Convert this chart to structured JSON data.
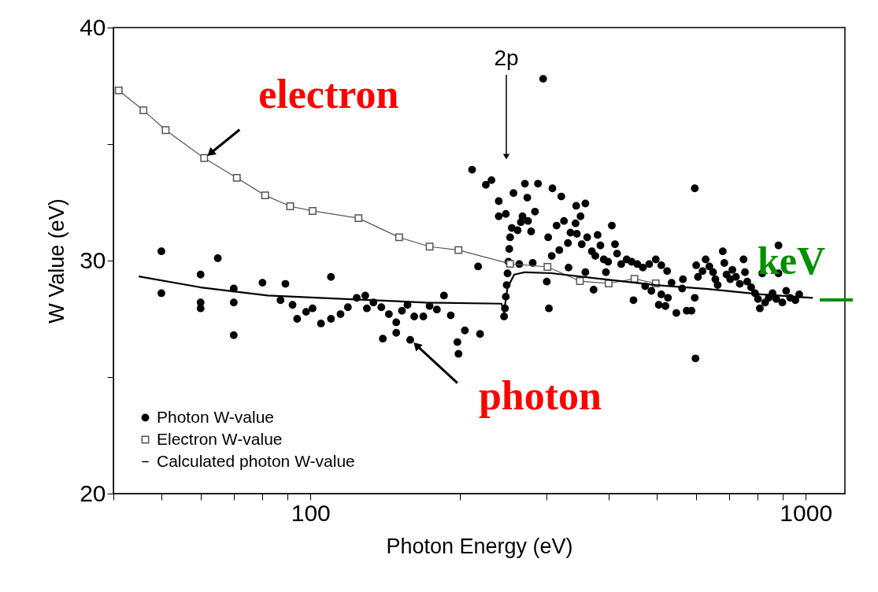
{
  "chart_data": {
    "type": "scatter",
    "xlabel": "Photon Energy (eV)",
    "ylabel": "W Value (eV)",
    "log": "x",
    "xlim": [
      40,
      1200
    ],
    "ylim": [
      20,
      40
    ],
    "xticks": [
      {
        "value": 40,
        "label": null
      },
      {
        "value": 50,
        "label": null
      },
      {
        "value": 60,
        "label": null
      },
      {
        "value": 70,
        "label": null
      },
      {
        "value": 80,
        "label": null
      },
      {
        "value": 90,
        "label": null
      },
      100,
      {
        "value": 200,
        "label": null
      },
      {
        "value": 300,
        "label": null
      },
      {
        "value": 400,
        "label": null
      },
      {
        "value": 500,
        "label": null
      },
      {
        "value": 600,
        "label": null
      },
      {
        "value": 700,
        "label": null
      },
      {
        "value": 800,
        "label": null
      },
      {
        "value": 900,
        "label": null
      },
      1000
    ],
    "yticks": [
      20,
      {
        "value": 25,
        "label": null
      },
      30,
      {
        "value": 35,
        "label": null
      },
      40
    ],
    "grid": false,
    "legend": "bottom left",
    "line_style": "solid",
    "series": [
      {
        "name": "Photon W-value",
        "type": "scatter",
        "marker": "circle",
        "color": "#000000",
        "x": [
          50,
          65,
          50,
          60,
          60,
          60,
          70,
          70,
          70,
          80,
          89,
          87,
          92,
          94,
          98,
          101,
          105,
          110,
          115,
          119,
          110,
          124,
          129,
          130,
          134,
          139,
          144,
          149,
          149,
          140,
          153,
          157,
          162,
          159,
          169,
          174,
          180,
          186,
          192,
          205,
          220,
          198,
          199,
          212,
          226,
          232,
          240,
          240,
          218,
          295,
          246,
          247,
          248,
          249,
          250,
          251,
          252,
          253,
          255,
          262,
          248,
          257,
          271,
          274,
          288,
          268,
          266,
          275,
          284,
          279,
          264,
          281,
          300,
          303,
          302,
          308,
          321,
          314,
          325,
          307,
          318,
          331,
          332,
          335,
          344,
          359,
          351,
          343,
          345,
          353,
          362,
          359,
          373,
          380,
          385,
          370,
          376,
          391,
          399,
          395,
          406,
          412,
          416,
          424,
          435,
          445,
          457,
          469,
          483,
          498,
          511,
          525,
          449,
          474,
          488,
          511,
          527,
          505,
          521,
          536,
          548,
          565,
          563,
          575,
          588,
          597,
          599,
          597,
          601,
          606,
          619,
          628,
          639,
          650,
          657,
          664,
          680,
          685,
          692,
          704,
          711,
          723,
          736,
          749,
          754,
          762,
          776,
          790,
          801,
          808,
          817,
          828,
          842,
          857,
          872,
          881,
          881,
          897,
          913,
          930,
          953,
          970
        ],
        "values": [
          30.4,
          30.1,
          28.6,
          29.4,
          28.2,
          27.95,
          28.8,
          28.2,
          26.8,
          29.05,
          29.0,
          28.3,
          28.1,
          27.5,
          27.8,
          27.95,
          27.3,
          27.5,
          27.7,
          28.0,
          29.3,
          28.4,
          28.5,
          27.95,
          28.2,
          28.0,
          27.7,
          27.35,
          26.9,
          26.65,
          27.85,
          28.1,
          27.6,
          26.6,
          27.6,
          28.05,
          27.9,
          28.5,
          27.65,
          27.0,
          26.85,
          26.5,
          26.0,
          33.9,
          33.25,
          33.45,
          32.55,
          31.9,
          29.75,
          37.8,
          27.6,
          27.95,
          28.45,
          28.95,
          29.45,
          29.95,
          30.5,
          31.0,
          31.4,
          31.3,
          32.0,
          32.9,
          33.3,
          32.7,
          33.3,
          31.9,
          31.65,
          31.7,
          32.1,
          31.25,
          29.85,
          29.9,
          29.1,
          27.95,
          31.0,
          33.1,
          32.75,
          31.5,
          31.7,
          30.2,
          30.45,
          30.75,
          29.7,
          31.2,
          32.35,
          32.45,
          31.9,
          31.6,
          31.15,
          30.7,
          31.0,
          29.5,
          28.75,
          31.1,
          30.65,
          30.4,
          30.2,
          30.05,
          29.95,
          29.5,
          31.5,
          30.7,
          30.3,
          29.85,
          30.05,
          29.95,
          29.85,
          29.7,
          29.85,
          30.05,
          29.8,
          29.55,
          28.3,
          28.9,
          28.7,
          28.55,
          28.4,
          28.1,
          28.05,
          29.05,
          27.75,
          29.2,
          28.8,
          27.85,
          27.85,
          33.1,
          25.8,
          28.4,
          29.8,
          29.3,
          29.55,
          30.05,
          29.75,
          29.5,
          29.2,
          28.95,
          30.4,
          29.9,
          29.4,
          29.2,
          29.6,
          29.3,
          29.0,
          30.05,
          29.5,
          29.1,
          28.85,
          28.6,
          28.35,
          27.95,
          29.45,
          28.2,
          28.4,
          28.6,
          28.35,
          30.65,
          29.45,
          28.2,
          28.7,
          28.4,
          28.3,
          28.55
        ]
      },
      {
        "name": "Electron W-value",
        "type": "line",
        "marker": "square",
        "color": "#555555",
        "x": [
          41,
          46,
          51,
          61,
          71,
          81,
          91,
          101,
          125,
          151,
          174,
          199,
          253,
          301,
          350,
          400,
          451,
          498
        ],
        "values": [
          37.3,
          36.45,
          35.6,
          34.4,
          33.55,
          32.8,
          32.33,
          32.13,
          31.82,
          31.0,
          30.6,
          30.45,
          29.86,
          29.73,
          29.12,
          29.02,
          29.22,
          29.02
        ]
      },
      {
        "name": "Calculated photon W-value",
        "type": "line",
        "marker": "none",
        "color": "#000000",
        "x": [
          45,
          60,
          82,
          118,
          171,
          243,
          246,
          250,
          258,
          271,
          306,
          391,
          498,
          635,
          812,
          1033
        ],
        "values": [
          29.32,
          28.85,
          28.5,
          28.35,
          28.2,
          28.15,
          27.8,
          28.85,
          29.4,
          29.5,
          29.46,
          29.2,
          28.95,
          28.78,
          28.55,
          28.4
        ]
      }
    ],
    "annotations": [
      "2p",
      {
        "text": "electron",
        "x": 61,
        "y": 34.4
      },
      {
        "text": "photon",
        "x": 159,
        "y": 26.6
      },
      "keV"
    ]
  }
}
